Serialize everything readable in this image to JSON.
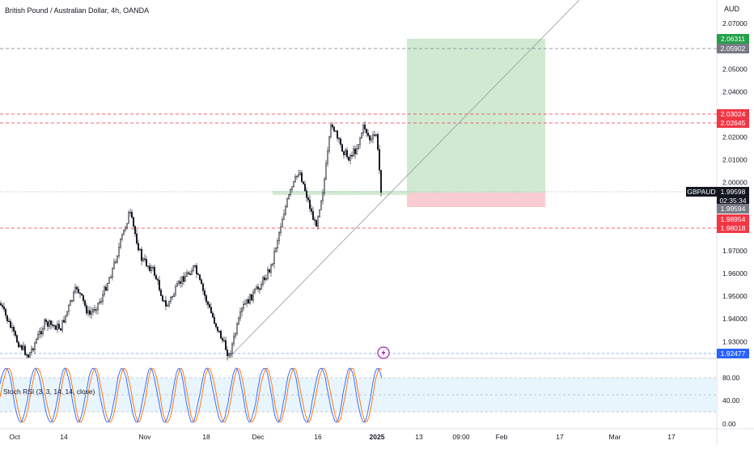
{
  "header": {
    "symbol_title": "British Pound / Australian Dollar, 4h, OANDA",
    "currency": "AUD"
  },
  "indicator": {
    "title": "Stoch RSI (3, 3, 14, 14, close)",
    "levels": [
      "80.00",
      "40.00",
      "0.00"
    ]
  },
  "price_scale": {
    "ticks": [
      "2.07000",
      "2.05000",
      "2.04000",
      "2.02000",
      "2.01000",
      "2.00000",
      "1.97000",
      "1.96000",
      "1.95000",
      "1.94000",
      "1.93000"
    ]
  },
  "price_tags": [
    {
      "value": "2.06311",
      "color": "#22a04a"
    },
    {
      "value": "2.05902",
      "color": "#787b86"
    },
    {
      "value": "2.03024",
      "color": "#f23645"
    },
    {
      "value": "2.02645",
      "color": "#f23645"
    },
    {
      "value": "1.99598",
      "color": "#131722"
    },
    {
      "value": "02:35:34",
      "color": "#131722"
    },
    {
      "value": "1.99594",
      "color": "#787b86"
    },
    {
      "value": "1.98954",
      "color": "#f23645"
    },
    {
      "value": "1.98018",
      "color": "#f23645"
    },
    {
      "value": "1.92477",
      "color": "#2962ff"
    }
  ],
  "symbol_tag": "GBPAUD",
  "time_axis": {
    "labels": [
      {
        "text": "Oct",
        "bold": false
      },
      {
        "text": "14",
        "bold": false
      },
      {
        "text": "Nov",
        "bold": false
      },
      {
        "text": "18",
        "bold": false
      },
      {
        "text": "Dec",
        "bold": false
      },
      {
        "text": "16",
        "bold": false
      },
      {
        "text": "2025",
        "bold": true
      },
      {
        "text": "13",
        "bold": false
      },
      {
        "text": "09:00",
        "bold": false
      },
      {
        "text": "Feb",
        "bold": false
      },
      {
        "text": "17",
        "bold": false
      },
      {
        "text": "Mar",
        "bold": false
      },
      {
        "text": "17",
        "bold": false
      }
    ]
  },
  "colors": {
    "up_candle": "#131722",
    "resistance_line": "#f23645",
    "target_zone": "#c8e6c9",
    "stop_zone": "#f8c8cc",
    "stoch_k": "#2962ff",
    "stoch_d": "#ff6d00",
    "event_icon": "#9c27b0"
  },
  "icons": {
    "event": "lightning-icon"
  }
}
